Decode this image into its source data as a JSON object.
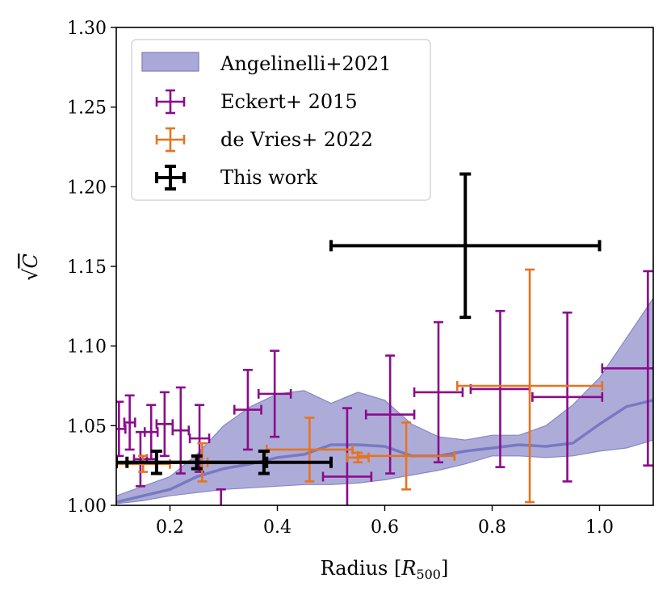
{
  "chart_data": {
    "type": "scatter",
    "xlabel": "Radius [R500]",
    "xlabel_parts": {
      "main": "Radius [",
      "var": "R",
      "sub": "500",
      "close": "]"
    },
    "ylabel": "√C",
    "ylabel_parts": {
      "root": "√",
      "var": "C"
    },
    "xlim": [
      0.1,
      1.1
    ],
    "ylim": [
      1.0,
      1.3
    ],
    "xticks": [
      0.2,
      0.4,
      0.6,
      0.8,
      1.0
    ],
    "xtick_labels": [
      "0.2",
      "0.4",
      "0.6",
      "0.8",
      "1.0"
    ],
    "yticks": [
      1.0,
      1.05,
      1.1,
      1.15,
      1.2,
      1.25,
      1.3
    ],
    "ytick_labels": [
      "1.00",
      "1.05",
      "1.10",
      "1.15",
      "1.20",
      "1.25",
      "1.30"
    ],
    "grid": false,
    "legend_position": "top-left",
    "colors": {
      "band_fill": "#a9a8d6",
      "band_edge": "#8886c4",
      "band_median": "#6c6bbd",
      "eckert": "#8b0b8b",
      "devries": "#e8731e",
      "thiswork": "#000000"
    },
    "band": {
      "name": "Angelinelli+2021",
      "x": [
        0.1,
        0.15,
        0.2,
        0.25,
        0.3,
        0.35,
        0.4,
        0.45,
        0.5,
        0.55,
        0.6,
        0.65,
        0.7,
        0.75,
        0.8,
        0.85,
        0.9,
        0.95,
        1.0,
        1.05,
        1.1
      ],
      "lower": [
        1.001,
        1.003,
        1.006,
        1.008,
        1.01,
        1.011,
        1.012,
        1.013,
        1.013,
        1.014,
        1.016,
        1.019,
        1.022,
        1.026,
        1.031,
        1.031,
        1.03,
        1.031,
        1.034,
        1.036,
        1.041
      ],
      "median": [
        1.002,
        1.006,
        1.01,
        1.018,
        1.023,
        1.026,
        1.03,
        1.032,
        1.038,
        1.038,
        1.037,
        1.031,
        1.031,
        1.034,
        1.036,
        1.038,
        1.037,
        1.039,
        1.051,
        1.062,
        1.066
      ],
      "upper": [
        1.006,
        1.012,
        1.018,
        1.032,
        1.05,
        1.062,
        1.07,
        1.072,
        1.064,
        1.071,
        1.066,
        1.051,
        1.043,
        1.041,
        1.044,
        1.044,
        1.05,
        1.063,
        1.08,
        1.105,
        1.13
      ]
    },
    "series": [
      {
        "name": "Eckert+ 2015",
        "key": "eckert",
        "points": [
          {
            "x": 0.105,
            "xerr": 0.012,
            "y": 1.048,
            "yerr": 0.017
          },
          {
            "x": 0.125,
            "xerr": 0.01,
            "y": 1.052,
            "yerr": 0.017
          },
          {
            "x": 0.145,
            "xerr": 0.012,
            "y": 1.029,
            "yerr": 0.017
          },
          {
            "x": 0.165,
            "xerr": 0.012,
            "y": 1.046,
            "yerr": 0.017
          },
          {
            "x": 0.19,
            "xerr": 0.015,
            "y": 1.051,
            "yerr": 0.02
          },
          {
            "x": 0.22,
            "xerr": 0.015,
            "y": 1.047,
            "yerr": 0.027
          },
          {
            "x": 0.255,
            "xerr": 0.018,
            "y": 1.042,
            "yerr": 0.021
          },
          {
            "x": 0.295,
            "xerr": 0.02,
            "y": 0.985,
            "yerr": 0.025
          },
          {
            "x": 0.345,
            "xerr": 0.025,
            "y": 1.06,
            "yerr": 0.025
          },
          {
            "x": 0.395,
            "xerr": 0.03,
            "y": 1.07,
            "yerr": 0.027
          },
          {
            "x": 0.53,
            "xerr": 0.045,
            "y": 1.018,
            "yerr": 0.043
          },
          {
            "x": 0.61,
            "xerr": 0.045,
            "y": 1.057,
            "yerr": 0.037
          },
          {
            "x": 0.7,
            "xerr": 0.045,
            "y": 1.071,
            "yerr": 0.044
          },
          {
            "x": 0.815,
            "xerr": 0.055,
            "y": 1.073,
            "yerr": 0.049
          },
          {
            "x": 0.94,
            "xerr": 0.065,
            "y": 1.068,
            "yerr": 0.053
          },
          {
            "x": 1.09,
            "xerr": 0.085,
            "y": 1.086,
            "yerr": 0.061
          }
        ]
      },
      {
        "name": "de Vries+ 2022",
        "key": "devries",
        "points": [
          {
            "x": 0.15,
            "xerr": 0.05,
            "y": 1.026,
            "yerr": 0.005
          },
          {
            "x": 0.26,
            "xerr": 0.01,
            "y": 1.027,
            "yerr": 0.012
          },
          {
            "x": 0.46,
            "xerr": 0.08,
            "y": 1.035,
            "yerr": 0.02
          },
          {
            "x": 0.55,
            "xerr": 0.02,
            "y": 1.03,
            "yerr": 0.003
          },
          {
            "x": 0.64,
            "xerr": 0.09,
            "y": 1.031,
            "yerr": 0.021
          },
          {
            "x": 0.87,
            "xerr": 0.135,
            "y": 1.075,
            "yerr": 0.073
          }
        ]
      },
      {
        "name": "This work",
        "key": "thiswork",
        "points": [
          {
            "x": 0.175,
            "xerr": 0.075,
            "y": 1.027,
            "yerr": 0.007
          },
          {
            "x": 0.25,
            "xerr": 0.13,
            "y": 1.027,
            "yerr": 0.004
          },
          {
            "x": 0.375,
            "xerr": 0.125,
            "y": 1.027,
            "yerr": 0.007
          },
          {
            "x": 0.75,
            "xerr": 0.25,
            "y": 1.163,
            "yerr": 0.045
          }
        ]
      }
    ],
    "legend": [
      {
        "label": "Angelinelli+2021",
        "kind": "band"
      },
      {
        "label": "Eckert+ 2015",
        "kind": "eckert"
      },
      {
        "label": "de Vries+ 2022",
        "kind": "devries"
      },
      {
        "label": "This work",
        "kind": "thiswork"
      }
    ]
  }
}
